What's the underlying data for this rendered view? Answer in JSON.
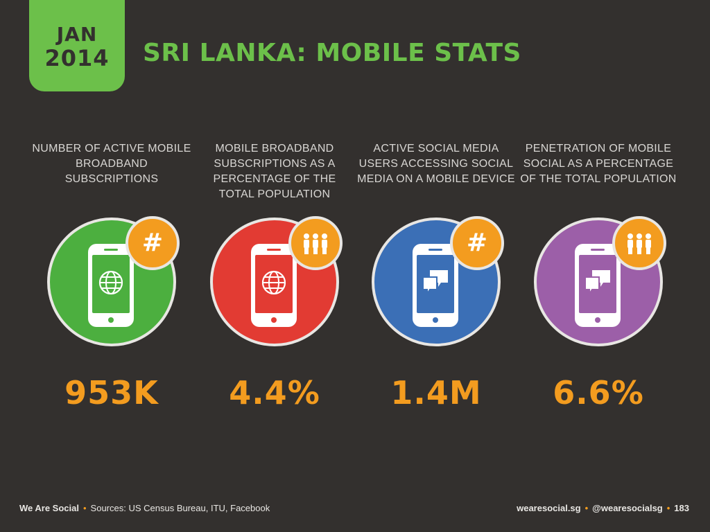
{
  "date_badge": {
    "month": "JAN",
    "year": "2014"
  },
  "title": "SRI LANKA: MOBILE STATS",
  "colors": {
    "background": "#33302e",
    "accent_green": "#6cc04a",
    "accent_orange": "#f39c1f",
    "stat_1": "#4caf3f",
    "stat_2": "#e23b33",
    "stat_3": "#3b6fb6",
    "stat_4": "#9c5fa8"
  },
  "stats": [
    {
      "label": "NUMBER OF ACTIVE MOBILE BROADBAND SUBSCRIPTIONS",
      "value": "953K",
      "screen_icon": "globe-icon",
      "badge_icon": "hash-icon"
    },
    {
      "label": "MOBILE BROADBAND SUBSCRIPTIONS AS A PERCENTAGE OF THE TOTAL POPULATION",
      "value": "4.4%",
      "screen_icon": "globe-icon",
      "badge_icon": "people-icon"
    },
    {
      "label": "ACTIVE SOCIAL MEDIA USERS ACCESSING SOCIAL MEDIA ON A MOBILE DEVICE",
      "value": "1.4M",
      "screen_icon": "chat-bubbles-icon",
      "badge_icon": "hash-icon"
    },
    {
      "label": "PENETRATION OF MOBILE SOCIAL AS A PERCENTAGE OF THE TOTAL POPULATION",
      "value": "6.6%",
      "screen_icon": "chat-bubbles-icon",
      "badge_icon": "people-icon"
    }
  ],
  "hash_symbol": "#",
  "footer": {
    "brand": "We Are Social",
    "sources": "Sources: US Census Bureau, ITU, Facebook",
    "website": "wearesocial.sg",
    "handle": "@wearesocialsg",
    "page_number": "183"
  }
}
